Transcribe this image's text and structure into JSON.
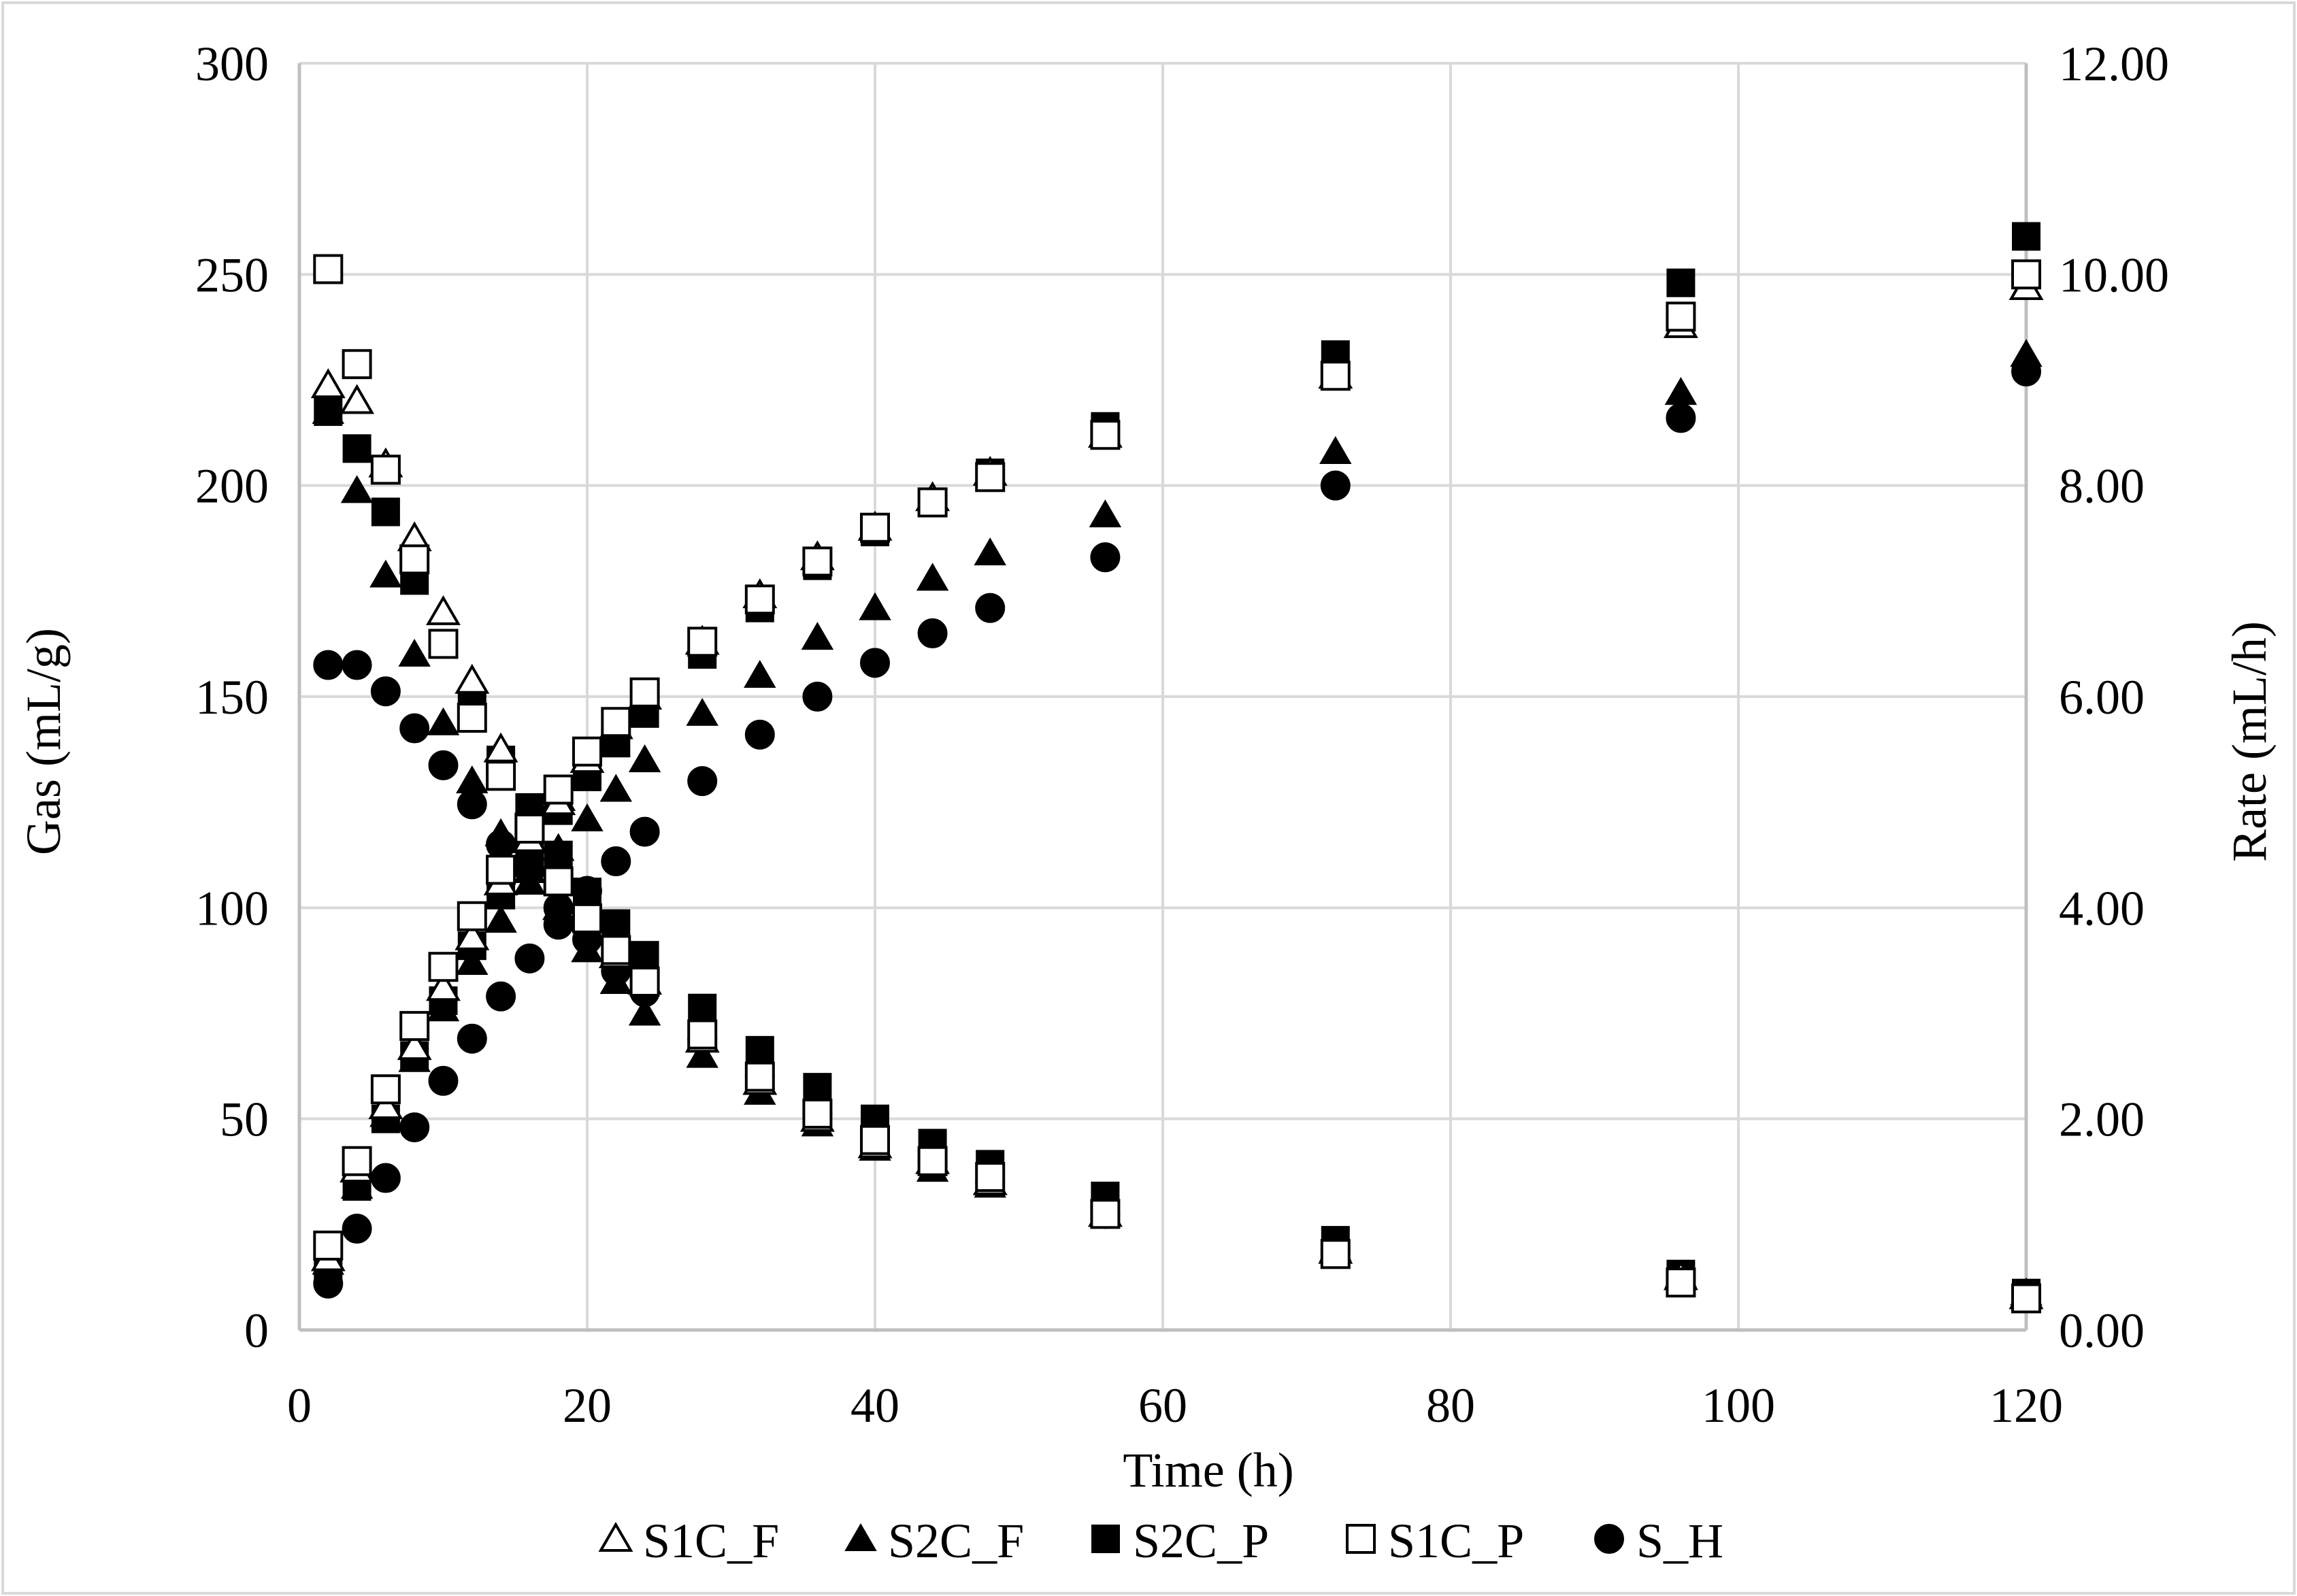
{
  "chart_data": {
    "type": "scatter",
    "xlabel": "Time (h)",
    "ylabel": "Gas (mL/g)",
    "y2label": "Rate (mL/h)",
    "xlim": [
      0,
      120
    ],
    "ylim": [
      0,
      300
    ],
    "y2lim": [
      0,
      12
    ],
    "xticks": [
      "0",
      "20",
      "40",
      "60",
      "80",
      "100",
      "120"
    ],
    "yticks": [
      "0",
      "50",
      "100",
      "150",
      "200",
      "250",
      "300"
    ],
    "y2ticks": [
      "0.00",
      "2.00",
      "4.00",
      "6.00",
      "8.00",
      "10.00",
      "12.00"
    ],
    "grid": true,
    "legend_position": "bottom",
    "x": [
      2,
      4,
      6,
      8,
      10,
      12,
      14,
      16,
      18,
      20,
      22,
      24,
      28,
      32,
      36,
      40,
      44,
      48,
      56,
      72,
      96,
      120
    ],
    "series": [
      {
        "name": "S1C_F",
        "marker": "triangle-open",
        "gas": [
          17,
          38,
          53,
          67,
          81,
          93,
          106,
          116,
          126,
          135,
          143,
          150,
          163,
          174,
          183,
          190,
          197,
          203,
          212,
          226,
          238,
          247
        ],
        "rate": [
          8.95,
          8.8,
          8.2,
          7.5,
          6.8,
          6.15,
          5.5,
          4.65,
          5.0,
          3.9,
          3.55,
          3.3,
          2.75,
          2.35,
          2.0,
          1.75,
          1.6,
          1.4,
          1.1,
          0.75,
          0.5,
          0.32
        ]
      },
      {
        "name": "S2C_F",
        "marker": "triangle-filled",
        "gas": [
          16,
          34,
          51,
          64,
          76,
          87,
          97,
          106,
          114,
          121,
          128,
          135,
          146,
          155,
          164,
          171,
          178,
          184,
          193,
          208,
          222,
          231
        ],
        "rate": [
          8.7,
          7.95,
          7.15,
          6.4,
          5.75,
          5.2,
          4.7,
          4.35,
          4.0,
          3.6,
          3.3,
          3.0,
          2.6,
          2.25,
          1.95,
          1.72,
          1.52,
          1.37,
          1.1,
          0.77,
          0.52,
          0.35
        ]
      },
      {
        "name": "S2C_P",
        "marker": "square-filled",
        "gas": [
          15,
          34,
          50,
          65,
          78,
          91,
          103,
          113,
          123,
          131,
          139,
          146,
          160,
          171,
          181,
          189,
          196,
          203,
          214,
          231,
          248,
          259
        ],
        "rate": [
          8.7,
          8.35,
          7.75,
          7.1,
          6.5,
          5.9,
          5.4,
          4.95,
          4.5,
          4.15,
          3.85,
          3.55,
          3.05,
          2.65,
          2.3,
          2.0,
          1.77,
          1.57,
          1.27,
          0.85,
          0.53,
          0.35
        ]
      },
      {
        "name": "S1C_P",
        "marker": "square-open",
        "gas": [
          20,
          40,
          57,
          72,
          86,
          98,
          109,
          119,
          128,
          137,
          144,
          151,
          163,
          173,
          182,
          190,
          196,
          202,
          212,
          226,
          240,
          250
        ],
        "rate": [
          10.05,
          9.15,
          8.15,
          7.3,
          6.5,
          5.8,
          5.25,
          4.75,
          4.25,
          3.9,
          3.6,
          3.3,
          2.8,
          2.4,
          2.05,
          1.8,
          1.6,
          1.45,
          1.1,
          0.72,
          0.45,
          0.3
        ]
      },
      {
        "name": "S_H",
        "marker": "circle-filled",
        "gas": [
          11,
          24,
          36,
          48,
          59,
          69,
          79,
          88,
          96,
          104,
          111,
          118,
          130,
          141,
          150,
          158,
          165,
          171,
          183,
          200,
          216,
          227
        ],
        "rate": [
          6.3,
          6.3,
          6.05,
          5.7,
          5.35,
          4.98,
          4.6,
          4.35,
          4.0,
          3.7,
          3.4,
          3.2,
          2.75,
          2.4,
          2.05,
          1.8,
          1.6,
          1.4,
          1.1,
          0.75,
          0.5,
          0.32
        ]
      }
    ]
  }
}
